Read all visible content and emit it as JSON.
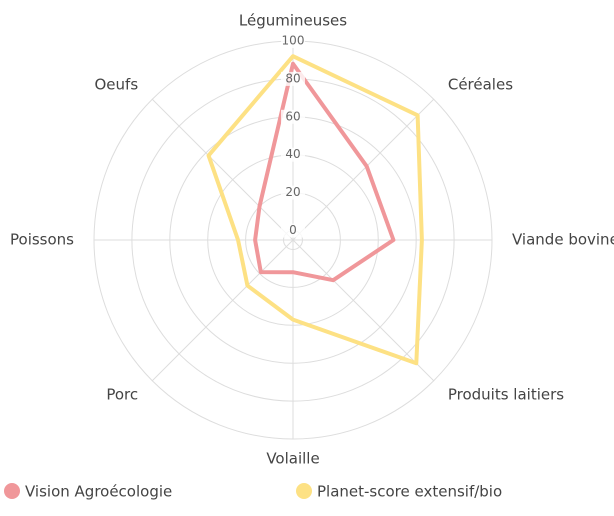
{
  "chart_data": {
    "type": "radar",
    "categories": [
      "Légumineuses",
      "Céréales",
      "Viande bovine",
      "Produits laitiers",
      "Volaille",
      "Porc",
      "Poissons",
      "Oeufs"
    ],
    "series": [
      {
        "name": "Vision Agroécologie",
        "color": "#f0979a",
        "values": [
          88,
          50,
          48,
          25,
          12,
          19,
          15,
          20
        ]
      },
      {
        "name": "Planet-score extensif/bio",
        "color": "#fde184",
        "values": [
          92,
          88,
          63,
          87,
          37,
          29,
          24,
          58
        ]
      }
    ],
    "ylim": [
      -5,
      100
    ],
    "yticks": [
      0,
      20,
      40,
      60,
      80,
      100
    ],
    "grid": true
  }
}
